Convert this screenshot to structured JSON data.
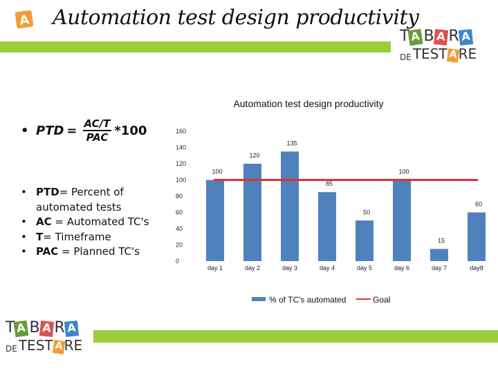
{
  "header": {
    "title": "Automation test design productivity"
  },
  "logo": {
    "line1": [
      "T",
      "A",
      "B",
      "A",
      "R",
      "A"
    ],
    "line2_prefix": "DE",
    "line2": [
      "T",
      "E",
      "S",
      "T",
      "A",
      "R",
      "E"
    ]
  },
  "icon": {
    "letter": "A",
    "color": "#f39c34"
  },
  "colors": {
    "accent": "#9acd3c",
    "bar": "#4f81bd",
    "goal": "#e03030"
  },
  "formula": {
    "lhs": "PTD",
    "eq": "=",
    "num": "AC/T",
    "den": "PAC",
    "factor": "*100"
  },
  "definitions": [
    {
      "term": "PTD",
      "text": "= Percent of automated tests"
    },
    {
      "term": "AC",
      "text": " = Automated TC's"
    },
    {
      "term": "T",
      "text": "= Timeframe"
    },
    {
      "term": "PAC",
      "text": " = Planned TC's"
    }
  ],
  "chart_data": {
    "type": "bar",
    "title": "Automation test design productivity",
    "categories": [
      "day 1",
      "day 2",
      "day 3",
      "day 4",
      "day 5",
      "day 6",
      "day 7",
      "day8"
    ],
    "series": [
      {
        "name": "% of TC's automated",
        "values": [
          100,
          120,
          135,
          85,
          50,
          100,
          15,
          60
        ]
      },
      {
        "name": "Goal",
        "type": "line",
        "values": [
          100,
          100,
          100,
          100,
          100,
          100,
          100,
          100
        ]
      }
    ],
    "ylim": [
      0,
      160
    ],
    "yticks": [
      0,
      20,
      40,
      60,
      80,
      100,
      120,
      140,
      160
    ],
    "legend": "bottom"
  }
}
